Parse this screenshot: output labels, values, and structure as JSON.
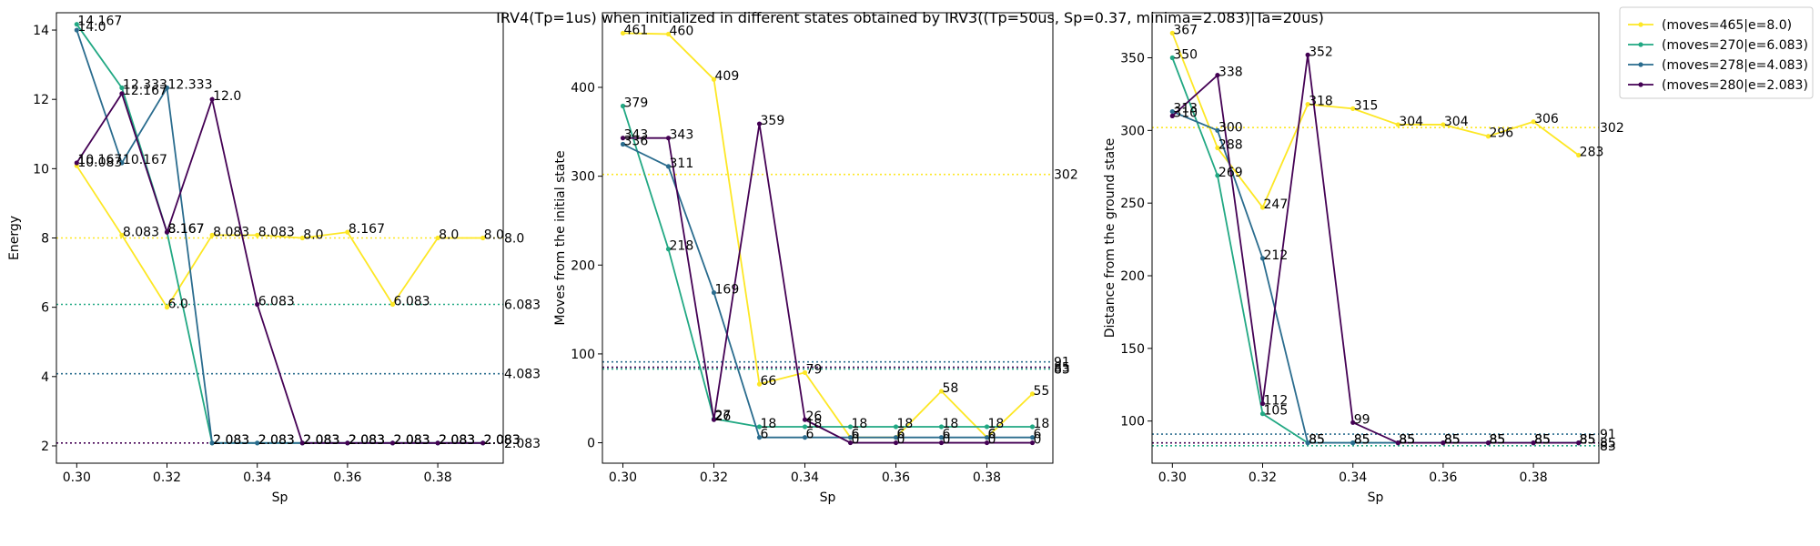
{
  "title": "IRV4(Tp=1us) when initialized in different states obtained by IRV3((Tp=50us, Sp=0.37, minima=2.083)|Ta=20us)",
  "colors": {
    "series": [
      "#fde725",
      "#21a883",
      "#2a6c8e",
      "#440154"
    ]
  },
  "legend": {
    "location": "outside-upper-right",
    "entries": [
      "(moves=465|e=8.0)",
      "(moves=270|e=6.083)",
      "(moves=278|e=4.083)",
      "(moves=280|e=2.083)"
    ]
  },
  "chart_data": [
    {
      "type": "line",
      "xlabel": "Sp",
      "ylabel": "Energy",
      "x": [
        0.3,
        0.31,
        0.32,
        0.33,
        0.34,
        0.35,
        0.36,
        0.37,
        0.38,
        0.39
      ],
      "xlim": [
        0.2955,
        0.3945
      ],
      "ylim": [
        1.5,
        14.5
      ],
      "xticks": [
        0.3,
        0.32,
        0.34,
        0.36,
        0.38
      ],
      "xtick_labels": [
        "0.30",
        "0.32",
        "0.34",
        "0.36",
        "0.38"
      ],
      "yticks": [
        2,
        4,
        6,
        8,
        10,
        12,
        14
      ],
      "ytick_labels": [
        "2",
        "4",
        "6",
        "8",
        "10",
        "12",
        "14"
      ],
      "series": [
        {
          "name": "(moves=465|e=8.0)",
          "values": [
            10.083,
            8.083,
            6.0,
            8.083,
            8.083,
            8.0,
            8.167,
            6.083,
            8.0,
            8.0
          ],
          "labels": [
            "10.083",
            "8.083",
            "6.0",
            "8.083",
            "8.083",
            "8.0",
            "8.167",
            "6.083",
            "8.0",
            "8.0"
          ]
        },
        {
          "name": "(moves=270|e=6.083)",
          "values": [
            14.167,
            12.333,
            8.167,
            2.083,
            2.083,
            2.083,
            2.083,
            2.083,
            2.083,
            2.083
          ],
          "labels": [
            "14.167",
            "12.333",
            "8.167",
            "2.083",
            "2.083",
            "2.083",
            "2.083",
            "2.083",
            "2.083",
            "2.083"
          ]
        },
        {
          "name": "(moves=278|e=4.083)",
          "values": [
            14.0,
            10.167,
            12.333,
            2.083,
            2.083,
            2.083,
            2.083,
            2.083,
            2.083,
            2.083
          ],
          "labels": [
            "14.0",
            "10.167",
            "12.333",
            "2.083",
            "2.083",
            "2.083",
            "2.083",
            "2.083",
            "2.083",
            "2.083"
          ]
        },
        {
          "name": "(moves=280|e=2.083)",
          "values": [
            10.167,
            12.167,
            8.167,
            12.0,
            6.083,
            2.083,
            2.083,
            2.083,
            2.083,
            2.083
          ],
          "labels": [
            "10.167",
            "12.167",
            "8.167",
            "12.0",
            "6.083",
            "2.083",
            "2.083",
            "2.083",
            "2.083",
            "2.083"
          ]
        }
      ],
      "reference_lines": [
        {
          "value": 8.0,
          "label": "8.0"
        },
        {
          "value": 6.083,
          "label": "6.083"
        },
        {
          "value": 4.083,
          "label": "4.083"
        },
        {
          "value": 2.083,
          "label": "2.083"
        }
      ]
    },
    {
      "type": "line",
      "xlabel": "Sp",
      "ylabel": "Moves from the initial state",
      "x": [
        0.3,
        0.31,
        0.32,
        0.33,
        0.34,
        0.35,
        0.36,
        0.37,
        0.38,
        0.39
      ],
      "xlim": [
        0.2955,
        0.3945
      ],
      "ylim": [
        -23,
        484
      ],
      "xticks": [
        0.3,
        0.32,
        0.34,
        0.36,
        0.38
      ],
      "xtick_labels": [
        "0.30",
        "0.32",
        "0.34",
        "0.36",
        "0.38"
      ],
      "yticks": [
        0,
        100,
        200,
        300,
        400
      ],
      "ytick_labels": [
        "0",
        "100",
        "200",
        "300",
        "400"
      ],
      "series": [
        {
          "name": "(moves=465|e=8.0)",
          "values": [
            461,
            460,
            409,
            66,
            79,
            6,
            6,
            58,
            6,
            55
          ],
          "labels": [
            "461",
            "460",
            "409",
            "66",
            "79",
            "6",
            "6",
            "58",
            "6",
            "55"
          ]
        },
        {
          "name": "(moves=270|e=6.083)",
          "values": [
            379,
            218,
            27,
            18,
            18,
            18,
            18,
            18,
            18,
            18
          ],
          "labels": [
            "379",
            "218",
            "27",
            "18",
            "18",
            "18",
            "18",
            "18",
            "18",
            "18"
          ]
        },
        {
          "name": "(moves=278|e=4.083)",
          "values": [
            336,
            311,
            169,
            6,
            6,
            6,
            6,
            6,
            6,
            6
          ],
          "labels": [
            "336",
            "311",
            "169",
            "6",
            "6",
            "6",
            "6",
            "6",
            "6",
            "6"
          ]
        },
        {
          "name": "(moves=280|e=2.083)",
          "values": [
            343,
            343,
            26,
            359,
            26,
            0,
            0,
            0,
            0,
            0
          ],
          "labels": [
            "343",
            "343",
            "26",
            "359",
            "26",
            "0",
            "0",
            "0",
            "0",
            "0"
          ]
        }
      ],
      "reference_lines": [
        {
          "value": 302,
          "label": "302"
        },
        {
          "value": 83,
          "label": "83"
        },
        {
          "value": 91,
          "label": "91"
        },
        {
          "value": 85,
          "label": "85"
        }
      ]
    },
    {
      "type": "line",
      "xlabel": "Sp",
      "ylabel": "Distance from the ground state",
      "x": [
        0.3,
        0.31,
        0.32,
        0.33,
        0.34,
        0.35,
        0.36,
        0.37,
        0.38,
        0.39
      ],
      "xlim": [
        0.2955,
        0.3945
      ],
      "ylim": [
        71,
        381
      ],
      "xticks": [
        0.3,
        0.32,
        0.34,
        0.36,
        0.38
      ],
      "xtick_labels": [
        "0.30",
        "0.32",
        "0.34",
        "0.36",
        "0.38"
      ],
      "yticks": [
        100,
        150,
        200,
        250,
        300,
        350
      ],
      "ytick_labels": [
        "100",
        "150",
        "200",
        "250",
        "300",
        "350"
      ],
      "series": [
        {
          "name": "(moves=465|e=8.0)",
          "values": [
            367,
            288,
            247,
            318,
            315,
            304,
            304,
            296,
            306,
            283
          ],
          "labels": [
            "367",
            "288",
            "247",
            "318",
            "315",
            "304",
            "304",
            "296",
            "306",
            "283"
          ]
        },
        {
          "name": "(moves=270|e=6.083)",
          "values": [
            350,
            269,
            105,
            85,
            85,
            85,
            85,
            85,
            85,
            85
          ],
          "labels": [
            "350",
            "269",
            "105",
            "85",
            "85",
            "85",
            "85",
            "85",
            "85",
            "85"
          ]
        },
        {
          "name": "(moves=278|e=4.083)",
          "values": [
            313,
            300,
            212,
            85,
            85,
            85,
            85,
            85,
            85,
            85
          ],
          "labels": [
            "313",
            "300",
            "212",
            "85",
            "85",
            "85",
            "85",
            "85",
            "85",
            "85"
          ]
        },
        {
          "name": "(moves=280|e=2.083)",
          "values": [
            310,
            338,
            112,
            352,
            99,
            85,
            85,
            85,
            85,
            85
          ],
          "labels": [
            "310",
            "338",
            "112",
            "352",
            "99",
            "85",
            "85",
            "85",
            "85",
            "85"
          ]
        }
      ],
      "reference_lines": [
        {
          "value": 302,
          "label": "302"
        },
        {
          "value": 83,
          "label": "83"
        },
        {
          "value": 91,
          "label": "91"
        },
        {
          "value": 85,
          "label": "85"
        }
      ]
    }
  ]
}
